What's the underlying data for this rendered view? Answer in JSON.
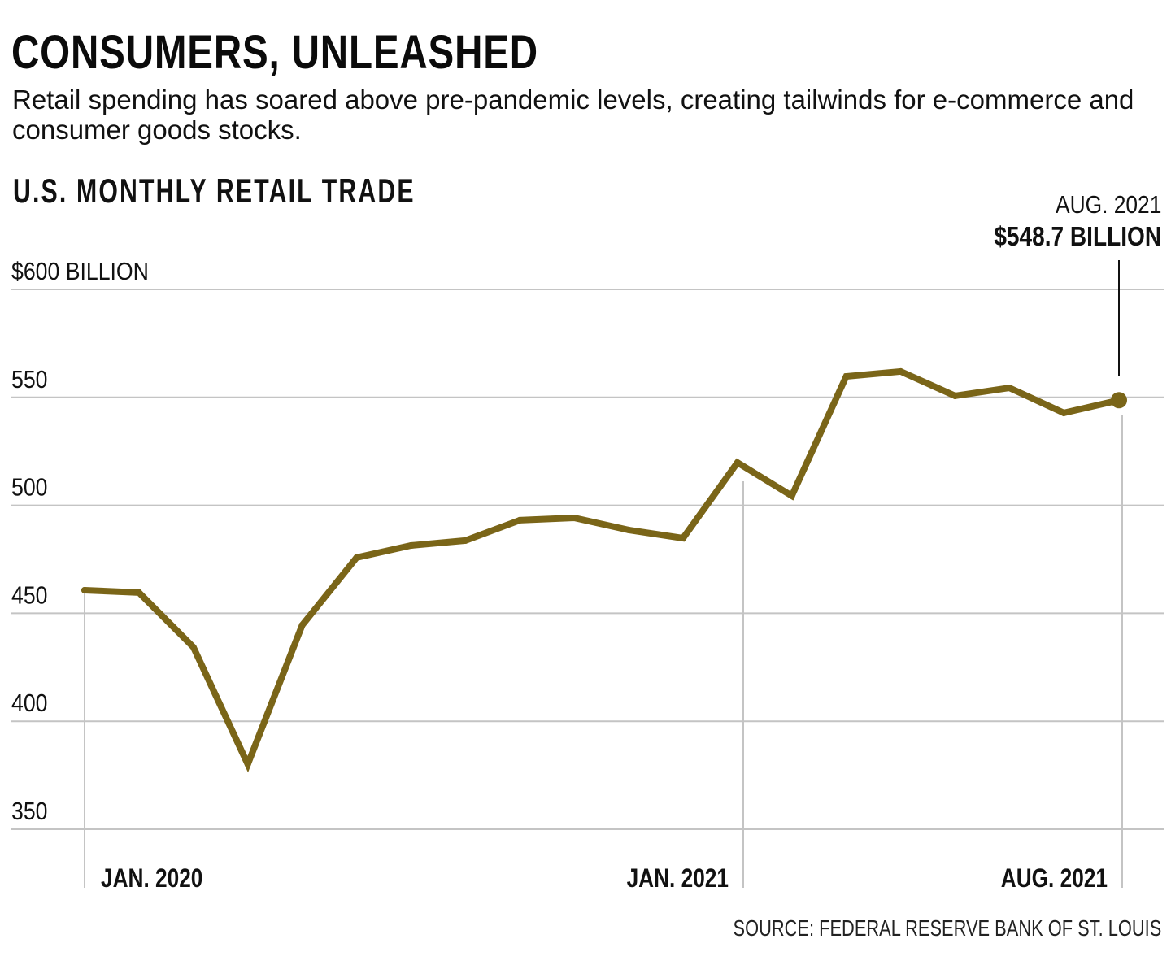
{
  "header": {
    "title": "CONSUMERS, UNLEASHED",
    "subtitle": "Retail spending has soared above pre-pandemic levels, creating tailwinds for e-commerce and consumer goods stocks."
  },
  "annotation": {
    "date": "AUG. 2021",
    "value": "$548.7 BILLION"
  },
  "footer": {
    "source": "SOURCE: FEDERAL RESERVE BANK OF ST. LOUIS"
  },
  "colors": {
    "line": "#7a6518",
    "grid": "#c4c4c4",
    "text": "#111111"
  },
  "chart_data": {
    "type": "line",
    "title": "U.S. MONTHLY RETAIL TRADE",
    "xlabel": "",
    "ylabel": "$ billion",
    "ylim": [
      350,
      600
    ],
    "grid": true,
    "y_ticks": [
      {
        "value": 600,
        "label": "$600 BILLION"
      },
      {
        "value": 550,
        "label": "550"
      },
      {
        "value": 500,
        "label": "500"
      },
      {
        "value": 450,
        "label": "450"
      },
      {
        "value": 400,
        "label": "400"
      },
      {
        "value": 350,
        "label": "350"
      }
    ],
    "x_ticks": [
      {
        "index": 0,
        "label": "JAN. 2020"
      },
      {
        "index": 12,
        "label": "JAN. 2021"
      },
      {
        "index": 19,
        "label": "AUG. 2021"
      }
    ],
    "x": [
      "2020-01",
      "2020-02",
      "2020-03",
      "2020-04",
      "2020-05",
      "2020-06",
      "2020-07",
      "2020-08",
      "2020-09",
      "2020-10",
      "2020-11",
      "2020-12",
      "2021-01",
      "2021-02",
      "2021-03",
      "2021-04",
      "2021-05",
      "2021-06",
      "2021-07",
      "2021-08"
    ],
    "series": [
      {
        "name": "U.S. monthly retail trade",
        "values": [
          460.7,
          459.6,
          434.3,
          380.1,
          444.5,
          475.8,
          481.4,
          483.7,
          493.1,
          494.2,
          488.6,
          484.8,
          519.8,
          504.4,
          559.7,
          562.0,
          550.7,
          554.4,
          542.8,
          548.7
        ]
      }
    ],
    "highlight": {
      "index": 19,
      "value": 548.7,
      "label_date": "AUG. 2021",
      "label_value": "$548.7 BILLION"
    }
  }
}
